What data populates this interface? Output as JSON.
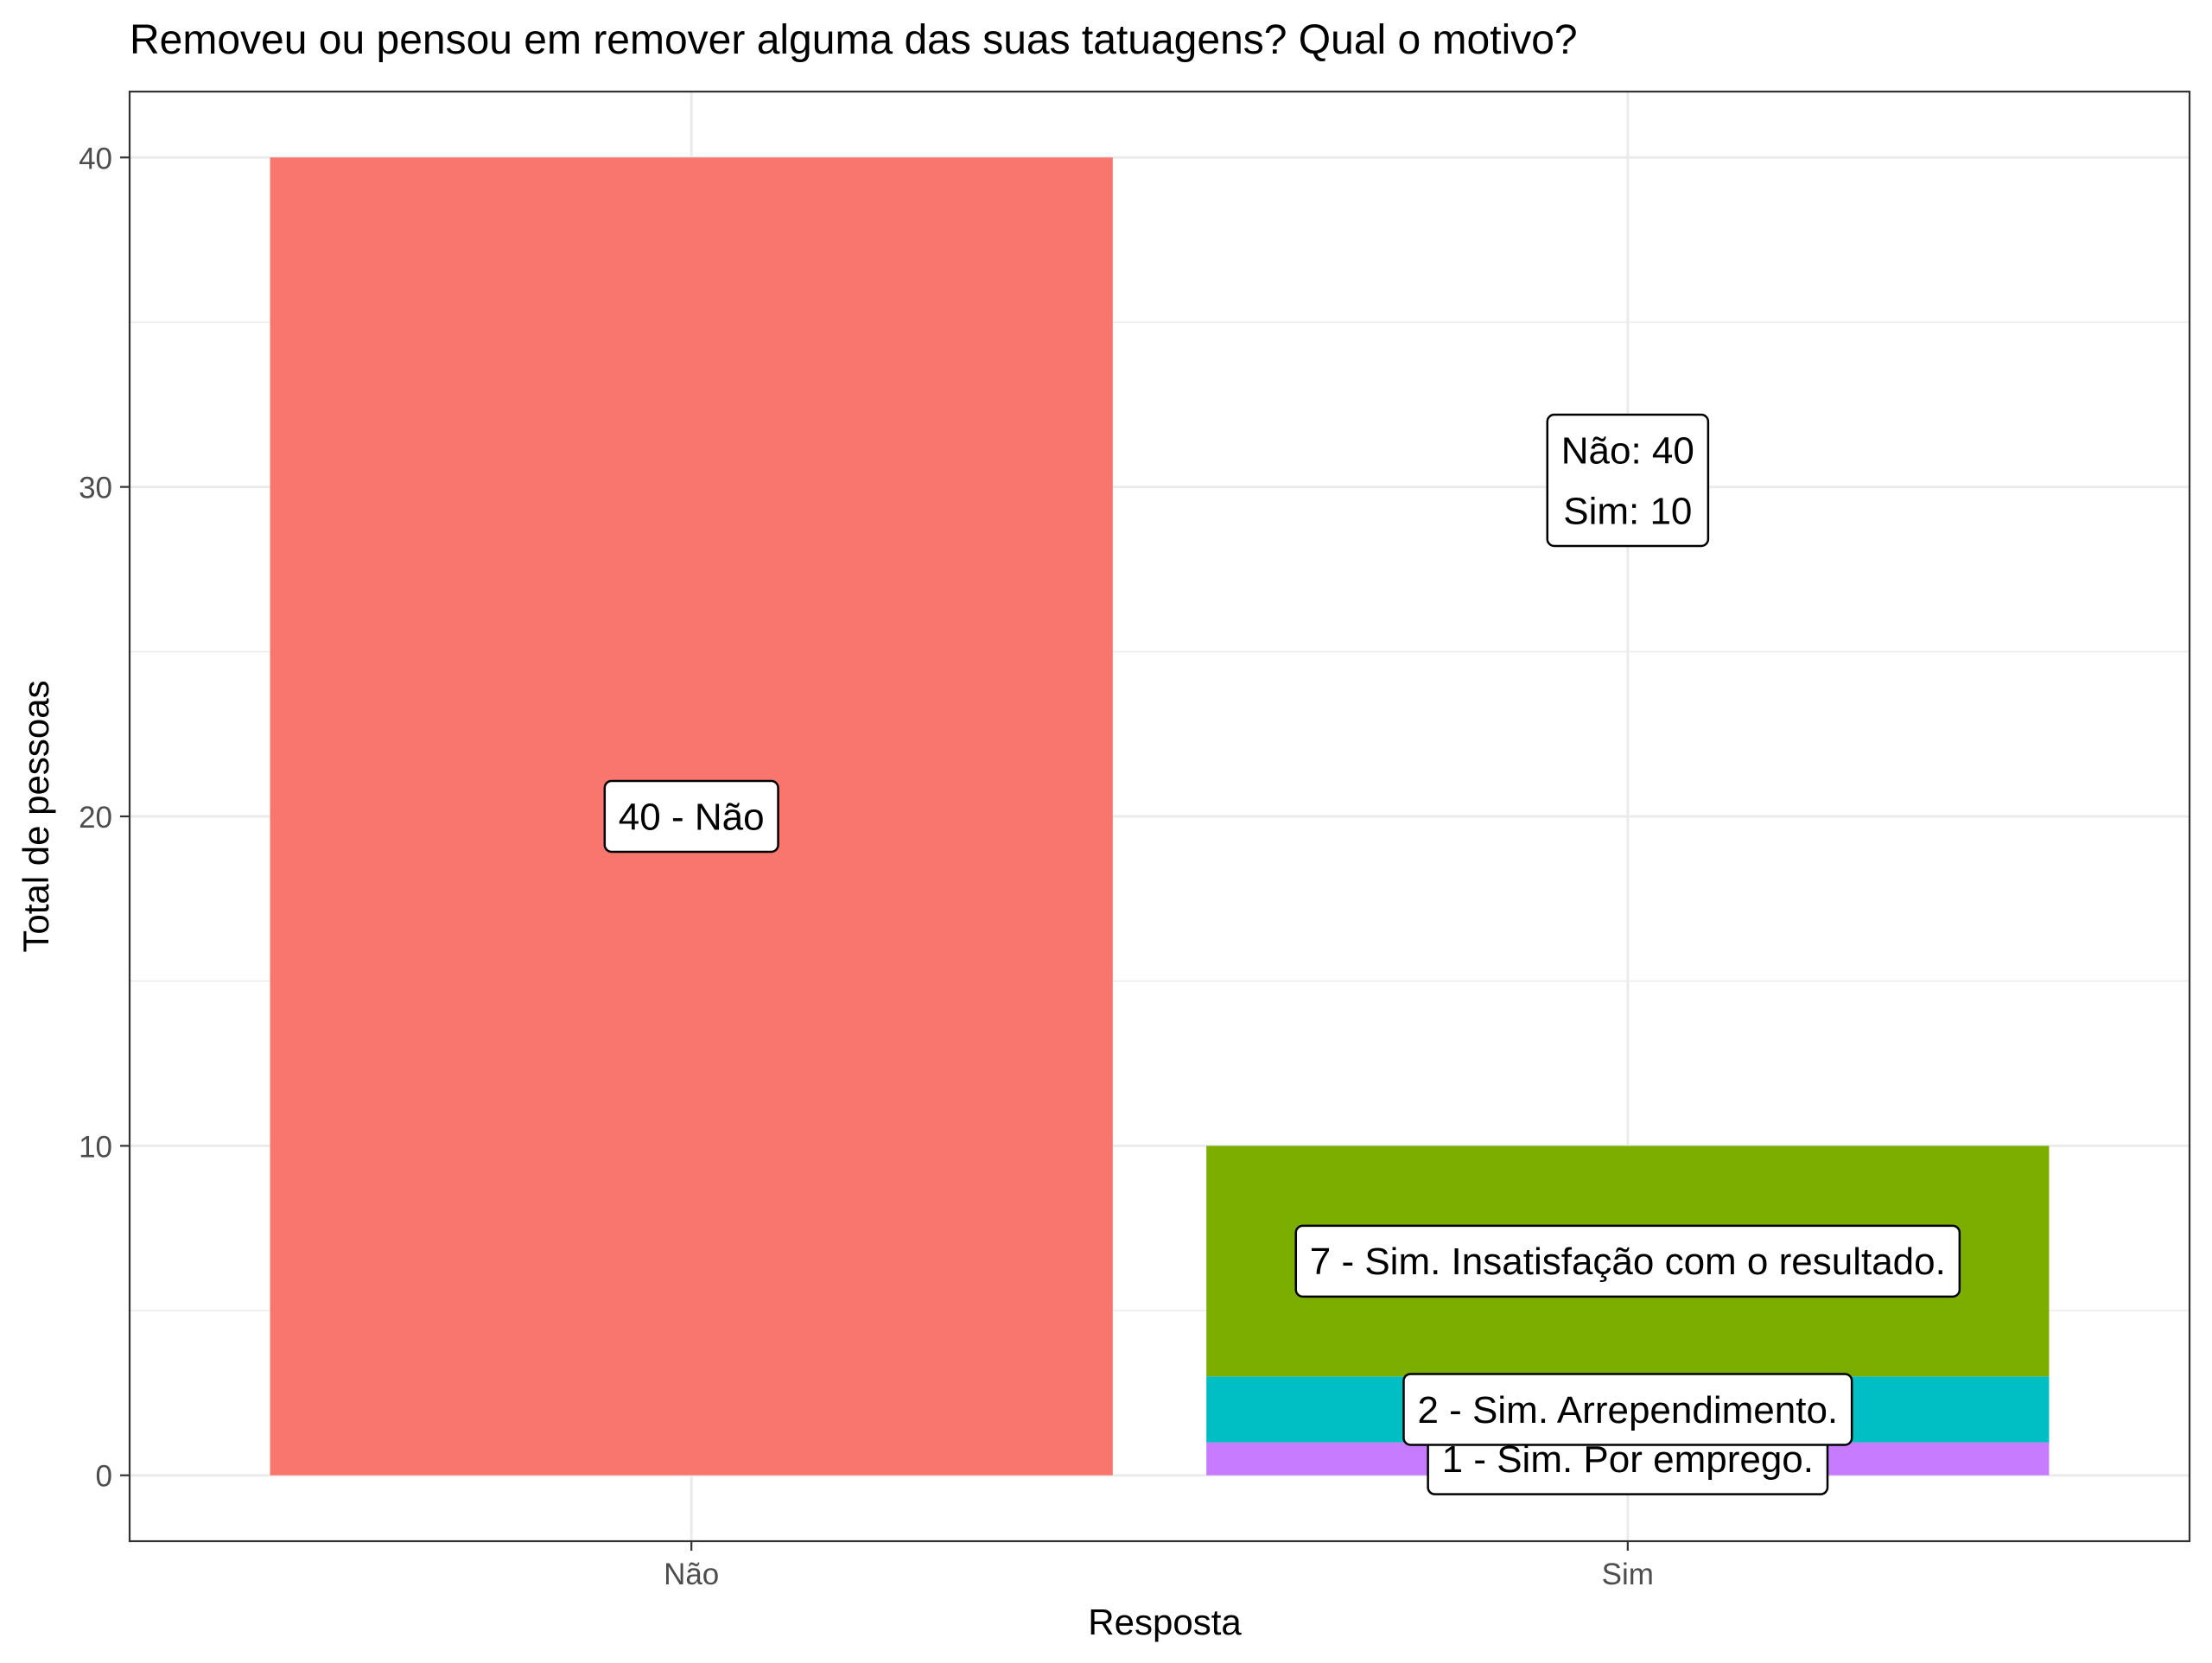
{
  "chart_data": {
    "type": "bar",
    "stacked": true,
    "title": "Removeu ou pensou em remover alguma das suas tatuagens? Qual o motivo?",
    "xlabel": "Resposta",
    "ylabel": "Total de pessoas",
    "categories": [
      "Não",
      "Sim"
    ],
    "ylim": [
      -2,
      42
    ],
    "yticks": [
      0,
      10,
      20,
      30,
      40
    ],
    "grid": true,
    "legend": "none",
    "segments": [
      {
        "category": "Não",
        "value": 40,
        "label": "40 - Não",
        "color": "#F8766D"
      },
      {
        "category": "Sim",
        "value": 1,
        "label": "1 - Sim. Por emprego.",
        "color": "#C77CFF"
      },
      {
        "category": "Sim",
        "value": 2,
        "label": "2 - Sim. Arrependimento.",
        "color": "#00BFC4"
      },
      {
        "category": "Sim",
        "value": 7,
        "label": "7 - Sim. Insatisfação com o resultado.",
        "color": "#7CAE00"
      }
    ],
    "annotation": {
      "lines": [
        "Não: 40",
        "Sim: 10"
      ]
    }
  }
}
